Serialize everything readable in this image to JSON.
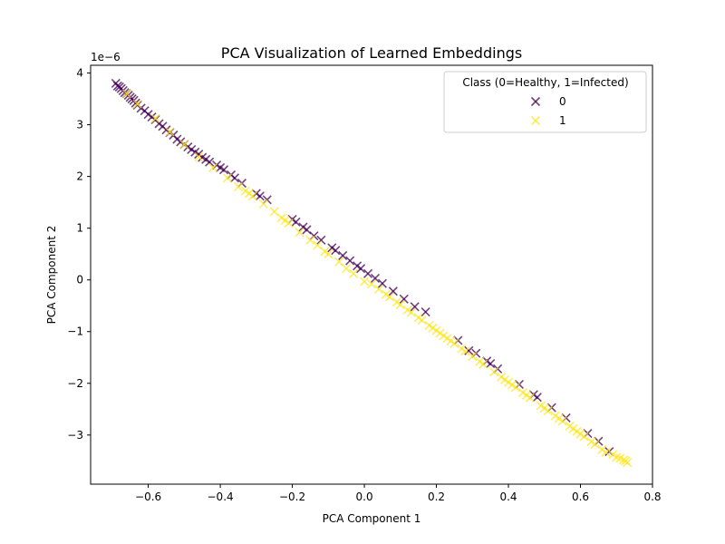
{
  "chart_data": {
    "type": "scatter",
    "title": "PCA Visualization of Learned Embeddings",
    "xlabel": "PCA Component 1",
    "ylabel": "PCA Component 2",
    "xlim": [
      -0.76,
      0.8
    ],
    "ylim": [
      -3.95,
      4.15
    ],
    "y_offset_label": "1e−6",
    "x_ticks": [
      -0.6,
      -0.4,
      -0.2,
      0.0,
      0.2,
      0.4,
      0.6,
      0.8
    ],
    "x_tick_labels": [
      "−0.6",
      "−0.4",
      "−0.2",
      "0.0",
      "0.2",
      "0.4",
      "0.6",
      "0.8"
    ],
    "y_ticks": [
      -3,
      -2,
      -1,
      0,
      1,
      2,
      3,
      4
    ],
    "y_tick_labels": [
      "−3",
      "−2",
      "−1",
      "0",
      "1",
      "2",
      "3",
      "4"
    ],
    "grid": false,
    "marker": "x",
    "legend": {
      "title": "Class (0=Healthy, 1=Infected)",
      "placement": "top-right"
    },
    "series": [
      {
        "name": "0",
        "color": "#440154",
        "x": [
          -0.69,
          -0.685,
          -0.68,
          -0.675,
          -0.67,
          -0.665,
          -0.66,
          -0.655,
          -0.65,
          -0.645,
          -0.64,
          -0.635,
          -0.63,
          -0.62,
          -0.61,
          -0.6,
          -0.59,
          -0.58,
          -0.57,
          -0.56,
          -0.55,
          -0.54,
          -0.53,
          -0.52,
          -0.51,
          -0.5,
          -0.49,
          -0.48,
          -0.47,
          -0.46,
          -0.45,
          -0.44,
          -0.43,
          -0.41,
          -0.4,
          -0.39,
          -0.37,
          -0.36,
          -0.34,
          -0.3,
          -0.29,
          -0.27,
          -0.2,
          -0.19,
          -0.17,
          -0.16,
          -0.14,
          -0.12,
          -0.09,
          -0.08,
          -0.06,
          -0.04,
          -0.02,
          -0.01,
          0.01,
          0.03,
          0.05,
          0.08,
          0.11,
          0.14,
          0.17,
          0.26,
          0.29,
          0.31,
          0.34,
          0.35,
          0.37,
          0.43,
          0.47,
          0.48,
          0.52,
          0.56,
          0.62,
          0.65,
          0.68
        ],
        "y": [
          3.8,
          3.75,
          3.73,
          3.7,
          3.66,
          3.62,
          3.6,
          3.57,
          3.53,
          3.5,
          3.47,
          3.42,
          3.38,
          3.32,
          3.27,
          3.2,
          3.15,
          3.1,
          3.02,
          2.97,
          2.9,
          2.85,
          2.8,
          2.72,
          2.67,
          2.62,
          2.57,
          2.52,
          2.47,
          2.43,
          2.37,
          2.33,
          2.28,
          2.22,
          2.17,
          2.13,
          2.03,
          1.97,
          1.87,
          1.67,
          1.62,
          1.55,
          1.17,
          1.12,
          1.02,
          0.97,
          0.85,
          0.77,
          0.62,
          0.57,
          0.47,
          0.37,
          0.27,
          0.22,
          0.12,
          0.03,
          -0.07,
          -0.22,
          -0.37,
          -0.52,
          -0.62,
          -1.17,
          -1.37,
          -1.42,
          -1.57,
          -1.62,
          -1.72,
          -2.02,
          -2.22,
          -2.27,
          -2.47,
          -2.67,
          -2.97,
          -3.12,
          -3.32
        ]
      },
      {
        "name": "1",
        "color": "#fde725",
        "x": [
          -0.66,
          -0.63,
          -0.58,
          -0.54,
          -0.5,
          -0.46,
          -0.42,
          -0.38,
          -0.35,
          -0.33,
          -0.32,
          -0.31,
          -0.28,
          -0.25,
          -0.23,
          -0.22,
          -0.21,
          -0.18,
          -0.15,
          -0.13,
          -0.11,
          -0.1,
          -0.07,
          -0.05,
          -0.03,
          0.0,
          0.02,
          0.04,
          0.06,
          0.07,
          0.09,
          0.1,
          0.12,
          0.13,
          0.15,
          0.16,
          0.18,
          0.19,
          0.2,
          0.21,
          0.22,
          0.23,
          0.24,
          0.25,
          0.27,
          0.28,
          0.3,
          0.32,
          0.33,
          0.36,
          0.38,
          0.39,
          0.4,
          0.41,
          0.42,
          0.44,
          0.45,
          0.46,
          0.49,
          0.5,
          0.51,
          0.53,
          0.54,
          0.55,
          0.57,
          0.58,
          0.59,
          0.6,
          0.61,
          0.63,
          0.64,
          0.66,
          0.67,
          0.69,
          0.7,
          0.71,
          0.72,
          0.725,
          0.73
        ],
        "y": [
          3.6,
          3.4,
          3.12,
          2.86,
          2.62,
          2.38,
          2.17,
          1.97,
          1.8,
          1.72,
          1.67,
          1.62,
          1.47,
          1.32,
          1.2,
          1.15,
          1.1,
          0.92,
          0.77,
          0.67,
          0.55,
          0.5,
          0.35,
          0.22,
          0.12,
          -0.03,
          -0.08,
          -0.18,
          -0.28,
          -0.33,
          -0.43,
          -0.48,
          -0.58,
          -0.63,
          -0.73,
          -0.78,
          -0.88,
          -0.93,
          -0.98,
          -1.03,
          -1.08,
          -1.13,
          -1.18,
          -1.23,
          -1.33,
          -1.38,
          -1.48,
          -1.58,
          -1.63,
          -1.78,
          -1.88,
          -1.93,
          -1.98,
          -2.03,
          -2.08,
          -2.18,
          -2.23,
          -2.28,
          -2.43,
          -2.48,
          -2.53,
          -2.63,
          -2.68,
          -2.73,
          -2.83,
          -2.88,
          -2.93,
          -2.98,
          -3.03,
          -3.13,
          -3.18,
          -3.28,
          -3.33,
          -3.38,
          -3.43,
          -3.45,
          -3.48,
          -3.5,
          -3.53
        ]
      }
    ]
  }
}
